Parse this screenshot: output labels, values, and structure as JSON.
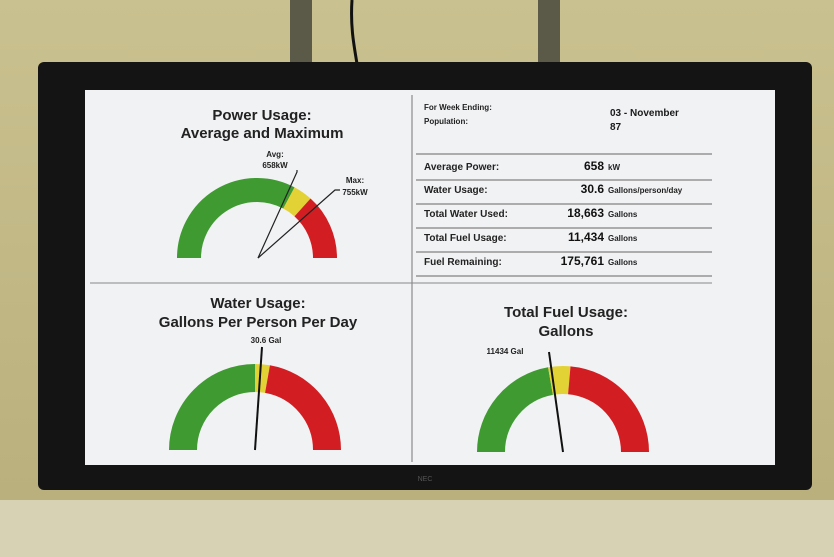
{
  "brand": "NEC",
  "power_gauge": {
    "title_line1": "Power Usage:",
    "title_line2": "Average and Maximum",
    "avg_label": "Avg:",
    "avg_value": "658kW",
    "max_label": "Max:",
    "max_value": "755kW"
  },
  "water_gauge": {
    "title_line1": "Water Usage:",
    "title_line2": "Gallons Per Person Per Day",
    "reading": "30.6 Gal"
  },
  "fuel_gauge": {
    "title_line1": "Total Fuel Usage:",
    "title_line2": "Gallons",
    "reading": "11434 Gal"
  },
  "info": {
    "week_label": "For Week Ending:",
    "week_value": "03 - November",
    "population_label": "Population:",
    "population_value": "87",
    "rows": [
      {
        "label": "Average Power:",
        "value": "658",
        "unit": "kW"
      },
      {
        "label": "Water Usage:",
        "value": "30.6",
        "unit": "Gallons/person/day"
      },
      {
        "label": "Total Water Used:",
        "value": "18,663",
        "unit": "Gallons"
      },
      {
        "label": "Total Fuel Usage:",
        "value": "11,434",
        "unit": "Gallons"
      },
      {
        "label": "Fuel Remaining:",
        "value": "175,761",
        "unit": "Gallons"
      }
    ]
  }
}
